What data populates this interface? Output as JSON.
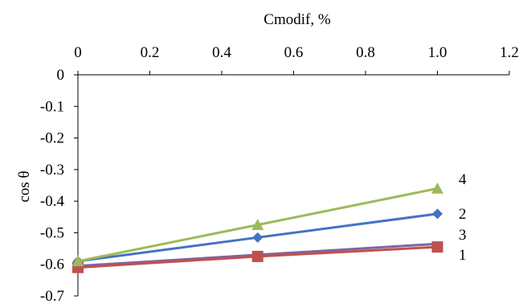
{
  "chart_data": {
    "type": "line",
    "xlabel": "Cmodif, %",
    "ylabel": "cos θ",
    "xlim": [
      0,
      1.2
    ],
    "ylim": [
      -0.7,
      0
    ],
    "x_ticks": [
      "0",
      "0.2",
      "0.4",
      "0.6",
      "0.8",
      "1.0",
      "1.2"
    ],
    "y_ticks": [
      "0",
      "-0.1",
      "-0.2",
      "-0.3",
      "-0.4",
      "-0.5",
      "-0.6",
      "-0.7"
    ],
    "x_axis_position": "top",
    "grid": false,
    "legend": "none",
    "series": [
      {
        "name": "1",
        "color": "#c0504d",
        "marker": "square",
        "x": [
          0,
          0.5,
          1.0
        ],
        "y": [
          -0.61,
          -0.575,
          -0.545
        ]
      },
      {
        "name": "2",
        "color": "#4472c4",
        "marker": "diamond",
        "x": [
          0,
          0.5,
          1.0
        ],
        "y": [
          -0.59,
          -0.515,
          -0.44
        ]
      },
      {
        "name": "3",
        "color": "#8064a2",
        "marker": "none",
        "x": [
          0,
          0.5,
          1.0
        ],
        "y": [
          -0.605,
          -0.57,
          -0.535
        ]
      },
      {
        "name": "4",
        "color": "#9bbb59",
        "marker": "triangle",
        "x": [
          0,
          0.5,
          1.0
        ],
        "y": [
          -0.59,
          -0.475,
          -0.36
        ]
      }
    ]
  }
}
